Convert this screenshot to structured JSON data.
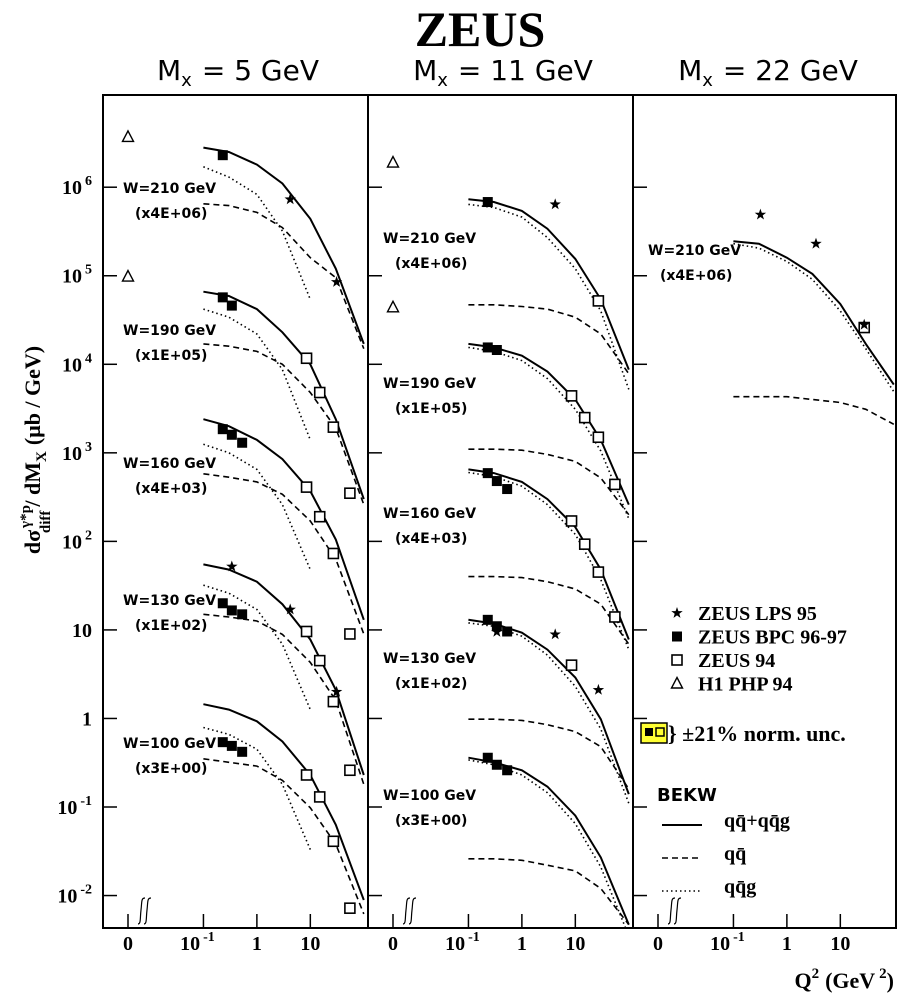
{
  "title": "ZEUS",
  "chart_data": [
    {
      "type": "line",
      "title": {
        "main": "M",
        "sub": "x",
        "rest": "= 5 GeV"
      },
      "ylabel": {
        "d": "dσ",
        "sup": "γ*p",
        "sub": "diff",
        "rest": "/ dM",
        "rest_sub": "X",
        "unit": "(μb / GeV)"
      },
      "xscale": "log",
      "yscale": "log",
      "xlim": [
        0.01,
        120
      ],
      "ylim": [
        0.0043,
        11000000
      ],
      "xticks": [
        0,
        {
          "value": 0.1,
          "label": "10",
          "exponent": "-1"
        },
        1,
        10
      ],
      "yticks": [
        {
          "value": 0.01,
          "label": "10",
          "exponent": "-2"
        },
        {
          "value": 0.1,
          "label": "10",
          "exponent": "-1"
        },
        1,
        10,
        {
          "value": 100,
          "label": "10",
          "exponent": "2"
        },
        {
          "value": 1000,
          "label": "10",
          "exponent": "3"
        },
        {
          "value": 10000,
          "label": "10",
          "exponent": "4"
        },
        {
          "value": 100000,
          "label": "10",
          "exponent": "5"
        },
        {
          "value": 1000000,
          "label": "10",
          "exponent": "6"
        }
      ],
      "labels": [
        {
          "text": "W=210 GeV",
          "factor": "(x4E+06)"
        },
        {
          "text": "W=190 GeV",
          "factor": "(x1E+05)"
        },
        {
          "text": "W=160 GeV",
          "factor": "(x4E+03)"
        },
        {
          "text": "W=130 GeV",
          "factor": "(x1E+02)"
        },
        {
          "text": "W=100 GeV",
          "factor": "(x3E+00)"
        }
      ],
      "x": [
        0.1,
        0.3,
        1,
        3,
        10,
        30,
        100
      ],
      "series": [
        {
          "style": "solid",
          "values": [
            2800000,
            2500000,
            1800000,
            1100000,
            440000,
            120000,
            17000
          ]
        },
        {
          "style": "dashed",
          "values": [
            650000,
            620000,
            520000,
            350000,
            160000,
            95000,
            15000
          ]
        },
        {
          "style": "dotted",
          "values": [
            1700000,
            1300000,
            830000,
            320000,
            54000,
            null,
            null
          ]
        },
        {
          "style": "solid",
          "values": [
            66000,
            59000,
            42000,
            23000,
            10000,
            2400,
            300
          ]
        },
        {
          "style": "dashed",
          "values": [
            17000,
            16000,
            14000,
            10000,
            4800,
            1900,
            260
          ]
        },
        {
          "style": "dotted",
          "values": [
            42000,
            34000,
            22000,
            8700,
            1400,
            null,
            null
          ]
        },
        {
          "style": "solid",
          "values": [
            2400,
            2000,
            1400,
            850,
            370,
            105,
            13
          ]
        },
        {
          "style": "dashed",
          "values": [
            580,
            530,
            470,
            340,
            170,
            63,
            9
          ]
        },
        {
          "style": "dotted",
          "values": [
            1250,
            1000,
            650,
            260,
            48,
            null,
            null
          ]
        },
        {
          "style": "solid",
          "values": [
            55,
            48,
            35,
            19.5,
            7.8,
            2.1,
            0.23
          ]
        },
        {
          "style": "dashed",
          "values": [
            15,
            14,
            12.6,
            8.9,
            4.3,
            1.6,
            0.18
          ]
        },
        {
          "style": "dotted",
          "values": [
            32,
            26,
            17,
            6.9,
            1.26,
            null,
            null
          ]
        },
        {
          "style": "solid",
          "values": [
            1.45,
            1.26,
            0.93,
            0.55,
            0.23,
            0.063,
            0.0089
          ]
        },
        {
          "style": "dashed",
          "values": [
            0.35,
            0.32,
            0.29,
            0.2,
            0.098,
            0.038,
            0.0062
          ]
        },
        {
          "style": "dotted",
          "values": [
            0.79,
            0.66,
            0.45,
            0.18,
            0.033,
            null,
            null
          ]
        }
      ],
      "points": [
        {
          "marker": "triangle",
          "x": [
            0,
            0
          ],
          "y": [
            3700000,
            98000
          ]
        },
        {
          "marker": "filled-square",
          "x": [
            0.23,
            0.23,
            0.34,
            0.23,
            0.34,
            0.53,
            0.23,
            0.34,
            0.53,
            0.23,
            0.34,
            0.53
          ],
          "y": [
            2300000,
            57000,
            46000,
            1850,
            1600,
            1300,
            20,
            16.6,
            15,
            0.54,
            0.49,
            0.42
          ]
        },
        {
          "marker": "open-square",
          "x": [
            8.5,
            15,
            27,
            55,
            8.5,
            15,
            27,
            55,
            8.5,
            15,
            27,
            55,
            8.5,
            15,
            27,
            55
          ],
          "y": [
            11700,
            4800,
            1950,
            350,
            410,
            190,
            73,
            9,
            9.6,
            4.5,
            1.55,
            0.26,
            0.23,
            0.13,
            0.041,
            0.0072
          ]
        },
        {
          "marker": "star",
          "x": [
            4.2,
            31,
            0.34,
            4.2,
            31
          ],
          "y": [
            730000,
            85000,
            52,
            17,
            2
          ]
        }
      ]
    },
    {
      "type": "line",
      "title": {
        "main": "M",
        "sub": "x",
        "rest": "= 11 GeV"
      },
      "xscale": "log",
      "yscale": "log",
      "xlim": [
        0.01,
        120
      ],
      "ylim": [
        0.0043,
        11000000
      ],
      "xticks": [
        0,
        {
          "value": 0.1,
          "label": "10",
          "exponent": "-1"
        },
        1,
        10
      ],
      "yticks": [
        0.01,
        0.1,
        1,
        10,
        100,
        1000,
        10000,
        100000,
        1000000
      ],
      "labels": [
        {
          "text": "W=210 GeV",
          "factor": "(x4E+06)"
        },
        {
          "text": "W=190 GeV",
          "factor": "(x1E+05)"
        },
        {
          "text": "W=160 GeV",
          "factor": "(x4E+03)"
        },
        {
          "text": "W=130 GeV",
          "factor": "(x1E+02)"
        },
        {
          "text": "W=100 GeV",
          "factor": "(x3E+00)"
        }
      ],
      "x": [
        0.1,
        0.3,
        1,
        3,
        10,
        30,
        100
      ],
      "series": [
        {
          "style": "solid",
          "values": [
            730000,
            680000,
            540000,
            340000,
            155000,
            54000,
            8700
          ]
        },
        {
          "style": "dashed",
          "values": [
            47000,
            47000,
            45000,
            42000,
            34000,
            22000,
            7800
          ]
        },
        {
          "style": "dotted",
          "values": [
            640000,
            590000,
            460000,
            270000,
            120000,
            40000,
            5200
          ]
        },
        {
          "style": "solid",
          "values": [
            17000,
            15500,
            12500,
            8300,
            4000,
            1400,
            260
          ]
        },
        {
          "style": "dashed",
          "values": [
            1100,
            1100,
            1070,
            960,
            800,
            520,
            200
          ]
        },
        {
          "style": "dotted",
          "values": [
            15500,
            14000,
            11000,
            6900,
            3100,
            1050,
            180
          ]
        },
        {
          "style": "solid",
          "values": [
            650,
            590,
            470,
            300,
            145,
            48,
            7.8
          ]
        },
        {
          "style": "dashed",
          "values": [
            40,
            40,
            39,
            35,
            29,
            19.5,
            6.9
          ]
        },
        {
          "style": "dotted",
          "values": [
            600,
            540,
            420,
            260,
            120,
            37,
            6
          ]
        },
        {
          "style": "solid",
          "values": [
            13,
            11.8,
            9.3,
            6,
            2.9,
            0.98,
            0.14
          ]
        },
        {
          "style": "dashed",
          "values": [
            0.98,
            0.98,
            0.95,
            0.85,
            0.71,
            0.48,
            0.16
          ]
        },
        {
          "style": "dotted",
          "values": [
            12,
            11,
            8.5,
            5.2,
            2.3,
            0.76,
            0.11
          ]
        },
        {
          "style": "solid",
          "values": [
            0.36,
            0.32,
            0.26,
            0.17,
            0.08,
            0.027,
            0.0047
          ]
        },
        {
          "style": "dashed",
          "values": [
            0.026,
            0.026,
            0.025,
            0.022,
            0.019,
            0.012,
            0.0047
          ]
        },
        {
          "style": "dotted",
          "values": [
            0.34,
            0.3,
            0.23,
            0.145,
            0.065,
            0.021,
            0.0035
          ]
        }
      ],
      "points": [
        {
          "marker": "triangle",
          "x": [
            0,
            0
          ],
          "y": [
            1900000,
            44000
          ]
        },
        {
          "marker": "filled-square",
          "x": [
            0.23,
            0.23,
            0.34,
            0.23,
            0.34,
            0.53,
            0.23,
            0.34,
            0.53,
            0.23,
            0.34,
            0.53
          ],
          "y": [
            680000,
            15500,
            14500,
            590,
            480,
            390,
            13,
            11,
            9.6,
            0.36,
            0.3,
            0.26
          ]
        },
        {
          "marker": "open-square",
          "x": [
            27,
            8.5,
            15,
            27,
            55,
            8.5,
            15,
            27,
            55,
            8.5
          ],
          "y": [
            52000,
            4400,
            2500,
            1500,
            440,
            170,
            93,
            45,
            14,
            4
          ]
        },
        {
          "marker": "star",
          "x": [
            4.2,
            0.34,
            4.2,
            27
          ],
          "y": [
            640000,
            9.5,
            8.9,
            2.1
          ]
        }
      ]
    },
    {
      "type": "line",
      "title": {
        "main": "M",
        "sub": "x",
        "rest": "= 22 GeV"
      },
      "xlabel": {
        "q": "Q",
        "sup": "2",
        "unit": "(GeV",
        "unit_sup": "2",
        "close": ")"
      },
      "xscale": "log",
      "yscale": "log",
      "xlim": [
        0.01,
        120
      ],
      "ylim": [
        0.0043,
        11000000
      ],
      "xticks": [
        0,
        {
          "value": 0.1,
          "label": "10",
          "exponent": "-1"
        },
        1,
        10
      ],
      "yticks": [
        0.01,
        0.1,
        1,
        10,
        100,
        1000,
        10000,
        100000,
        1000000
      ],
      "labels": [
        {
          "text": "W=210 GeV",
          "factor": "(x4E+06)"
        }
      ],
      "x": [
        0.1,
        0.3,
        1,
        3,
        10,
        30,
        100
      ],
      "series": [
        {
          "style": "solid",
          "values": [
            245000,
            230000,
            160000,
            105000,
            48000,
            17000,
            5900
          ]
        },
        {
          "style": "dashed",
          "values": [
            4300,
            4300,
            4300,
            4000,
            3700,
            3100,
            2100
          ]
        },
        {
          "style": "dotted",
          "values": [
            230000,
            205000,
            145000,
            91000,
            40000,
            15000,
            4900
          ]
        }
      ],
      "points": [
        {
          "marker": "open-square",
          "x": [
            28
          ],
          "y": [
            26000
          ]
        },
        {
          "marker": "star",
          "x": [
            0.32,
            3.5,
            28
          ],
          "y": [
            490000,
            230000,
            28000
          ]
        }
      ],
      "legend": {
        "entries": [
          {
            "marker": "star",
            "label": "ZEUS LPS 95"
          },
          {
            "marker": "filled-square",
            "label": "ZEUS BPC 96-97"
          },
          {
            "marker": "open-square",
            "label": "ZEUS 94"
          },
          {
            "marker": "triangle",
            "label": "H1 PHP 94"
          }
        ],
        "norm": "} ±21% norm. unc.",
        "model": "BEKW",
        "lines": [
          {
            "style": "solid",
            "label": "qq̄+qq̄g"
          },
          {
            "style": "dashed",
            "label": "qq̄"
          },
          {
            "style": "dotted",
            "label": "qq̄g"
          }
        ]
      }
    }
  ]
}
